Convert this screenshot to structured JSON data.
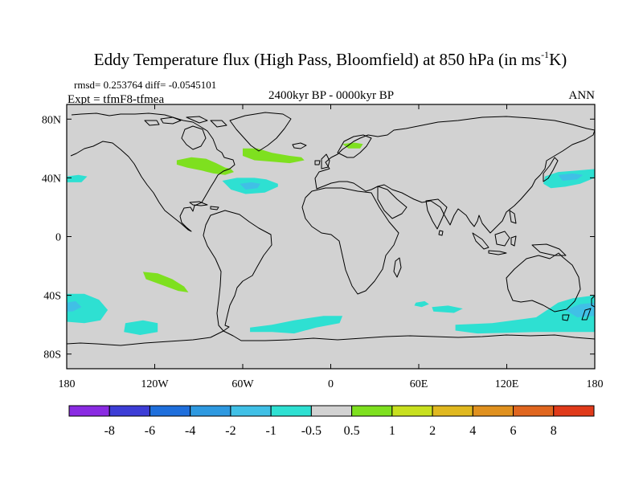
{
  "chart_data": {
    "type": "heatmap",
    "title": "Eddy Temperature flux (High Pass, Bloomfield) at 850 hPa (in ms",
    "title_superscript": "-1",
    "title_suffix": "K)",
    "stats_line": "rmsd= 0.253764  diff= -0.0545101",
    "left_subtitle": "Expt = tfmF8-tfmea",
    "center_subtitle": "2400kyr BP - 0000kyr BP",
    "right_subtitle": "ANN",
    "xlim": [
      -180,
      180
    ],
    "ylim": [
      -90,
      90
    ],
    "x_ticks": [
      {
        "value": -180,
        "label": "180"
      },
      {
        "value": -120,
        "label": "120W"
      },
      {
        "value": -60,
        "label": "60W"
      },
      {
        "value": 0,
        "label": "0"
      },
      {
        "value": 60,
        "label": "60E"
      },
      {
        "value": 120,
        "label": "120E"
      },
      {
        "value": 180,
        "label": "180"
      }
    ],
    "y_ticks": [
      {
        "value": 80,
        "label": "80N"
      },
      {
        "value": 40,
        "label": "40N"
      },
      {
        "value": 0,
        "label": "0"
      },
      {
        "value": -40,
        "label": "40S"
      },
      {
        "value": -80,
        "label": "80S"
      }
    ],
    "background_color": "#d2d2d2",
    "colorbar": {
      "colors": [
        "#8a2be2",
        "#3d3dd6",
        "#1f6fdc",
        "#2e99e0",
        "#40c0e6",
        "#2ee0d2",
        "#d2d2d2",
        "#7ee01f",
        "#c8e01f",
        "#e0b81f",
        "#e0911f",
        "#e0661f",
        "#e03a1a"
      ],
      "labels": [
        "-8",
        "-6",
        "-4",
        "-2",
        "-1",
        "-0.5",
        "0.5",
        "1",
        "2",
        "4",
        "6",
        "8"
      ]
    },
    "regions": [
      {
        "name": "n-america-north-positive",
        "level": "0.5 to 1",
        "color": "#7ee01f",
        "outline": [
          [
            -105,
            52
          ],
          [
            -95,
            54
          ],
          [
            -85,
            53
          ],
          [
            -78,
            50
          ],
          [
            -72,
            47
          ],
          [
            -68,
            46
          ],
          [
            -66,
            44
          ],
          [
            -72,
            42
          ],
          [
            -80,
            43
          ],
          [
            -88,
            45
          ],
          [
            -98,
            47
          ],
          [
            -105,
            49
          ]
        ]
      },
      {
        "name": "north-atlantic-positive",
        "level": "0.5 to 1",
        "color": "#7ee01f",
        "outline": [
          [
            -60,
            60
          ],
          [
            -50,
            60
          ],
          [
            -40,
            57
          ],
          [
            -28,
            55
          ],
          [
            -20,
            54
          ],
          [
            -18,
            52
          ],
          [
            -28,
            50
          ],
          [
            -40,
            51
          ],
          [
            -52,
            52
          ],
          [
            -60,
            55
          ]
        ]
      },
      {
        "name": "scandinavia-positive",
        "level": "0.5 to 1",
        "color": "#7ee01f",
        "outline": [
          [
            8,
            63
          ],
          [
            16,
            64
          ],
          [
            22,
            63
          ],
          [
            20,
            60
          ],
          [
            12,
            60
          ]
        ]
      },
      {
        "name": "north-atlantic-negative",
        "level": "-1 to -0.5",
        "color": "#2ee0d2",
        "outline": [
          [
            -74,
            38
          ],
          [
            -64,
            40
          ],
          [
            -52,
            40
          ],
          [
            -44,
            39
          ],
          [
            -36,
            36
          ],
          [
            -36,
            34
          ],
          [
            -45,
            30
          ],
          [
            -58,
            29
          ],
          [
            -68,
            32
          ]
        ]
      },
      {
        "name": "north-atlantic-negative-core",
        "level": "-2 to -1",
        "color": "#40c0e6",
        "outline": [
          [
            -62,
            36
          ],
          [
            -54,
            37
          ],
          [
            -48,
            36
          ],
          [
            -50,
            33
          ],
          [
            -58,
            32
          ]
        ]
      },
      {
        "name": "north-pacific-west-negative",
        "level": "-1 to -0.5",
        "color": "#2ee0d2",
        "outline": [
          [
            -180,
            41
          ],
          [
            -172,
            42
          ],
          [
            -166,
            41
          ],
          [
            -170,
            37
          ],
          [
            -180,
            37
          ]
        ]
      },
      {
        "name": "north-pacific-east-negative",
        "level": "-1 to -0.5",
        "color": "#2ee0d2",
        "outline": [
          [
            146,
            41
          ],
          [
            155,
            44
          ],
          [
            168,
            45
          ],
          [
            180,
            46
          ],
          [
            180,
            40
          ],
          [
            170,
            36
          ],
          [
            160,
            34
          ],
          [
            150,
            33
          ],
          [
            145,
            36
          ]
        ]
      },
      {
        "name": "north-pacific-east-negative-core",
        "level": "-2 to -1",
        "color": "#40c0e6",
        "outline": [
          [
            155,
            42
          ],
          [
            165,
            43
          ],
          [
            172,
            42
          ],
          [
            168,
            39
          ],
          [
            158,
            38
          ]
        ]
      },
      {
        "name": "south-pacific-positive",
        "level": "0.5 to 1",
        "color": "#7ee01f",
        "outline": [
          [
            -128,
            -24
          ],
          [
            -118,
            -25
          ],
          [
            -108,
            -29
          ],
          [
            -100,
            -34
          ],
          [
            -97,
            -38
          ],
          [
            -104,
            -37
          ],
          [
            -115,
            -33
          ],
          [
            -126,
            -29
          ]
        ]
      },
      {
        "name": "south-pacific-west-negative",
        "level": "-1 to -0.5",
        "color": "#2ee0d2",
        "outline": [
          [
            -180,
            -39
          ],
          [
            -168,
            -39
          ],
          [
            -158,
            -43
          ],
          [
            -152,
            -50
          ],
          [
            -157,
            -57
          ],
          [
            -168,
            -59
          ],
          [
            -180,
            -58
          ]
        ]
      },
      {
        "name": "south-pacific-west-negative-core",
        "level": "-2 to -1",
        "color": "#40c0e6",
        "outline": [
          [
            -180,
            -45
          ],
          [
            -174,
            -44
          ],
          [
            -170,
            -48
          ],
          [
            -176,
            -51
          ],
          [
            -180,
            -51
          ]
        ]
      },
      {
        "name": "south-pacific-mid-negative",
        "level": "-1 to -0.5",
        "color": "#2ee0d2",
        "outline": [
          [
            -140,
            -59
          ],
          [
            -128,
            -57
          ],
          [
            -118,
            -59
          ],
          [
            -118,
            -65
          ],
          [
            -130,
            -67
          ],
          [
            -141,
            -65
          ]
        ]
      },
      {
        "name": "south-atlantic-negative",
        "level": "-1 to -0.5",
        "color": "#2ee0d2",
        "outline": [
          [
            -55,
            -62
          ],
          [
            -40,
            -60
          ],
          [
            -25,
            -57
          ],
          [
            -5,
            -54
          ],
          [
            8,
            -54
          ],
          [
            6,
            -59
          ],
          [
            -10,
            -62
          ],
          [
            -25,
            -66
          ],
          [
            -40,
            -65
          ],
          [
            -55,
            -65
          ]
        ]
      },
      {
        "name": "indian-ocean-negative-small",
        "level": "-1 to -0.5",
        "color": "#2ee0d2",
        "outline": [
          [
            58,
            -45
          ],
          [
            64,
            -44
          ],
          [
            67,
            -46
          ],
          [
            62,
            -48
          ],
          [
            57,
            -47
          ]
        ]
      },
      {
        "name": "indian-ocean-negative",
        "level": "-1 to -0.5",
        "color": "#2ee0d2",
        "outline": [
          [
            69,
            -48
          ],
          [
            80,
            -47
          ],
          [
            90,
            -49
          ],
          [
            84,
            -52
          ],
          [
            70,
            -51
          ]
        ]
      },
      {
        "name": "australia-south-negative",
        "level": "-1 to -0.5",
        "color": "#2ee0d2",
        "outline": [
          [
            85,
            -60
          ],
          [
            110,
            -59
          ],
          [
            140,
            -55
          ],
          [
            155,
            -45
          ],
          [
            165,
            -42
          ],
          [
            180,
            -40
          ],
          [
            180,
            -65
          ],
          [
            140,
            -65
          ],
          [
            100,
            -66
          ],
          [
            85,
            -64
          ]
        ]
      },
      {
        "name": "australia-south-negative-core",
        "level": "-2 to -1",
        "color": "#40c0e6",
        "outline": [
          [
            160,
            -50
          ],
          [
            170,
            -46
          ],
          [
            180,
            -45
          ],
          [
            180,
            -54
          ],
          [
            168,
            -55
          ]
        ]
      }
    ]
  }
}
